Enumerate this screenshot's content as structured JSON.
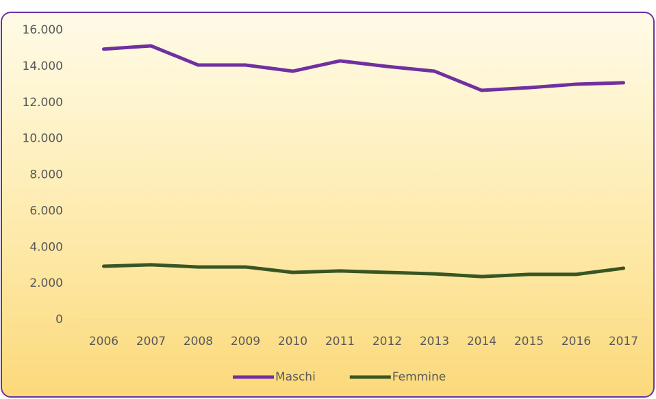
{
  "chart_data": {
    "type": "line",
    "categories": [
      "2006",
      "2007",
      "2008",
      "2009",
      "2010",
      "2011",
      "2012",
      "2013",
      "2014",
      "2015",
      "2016",
      "2017"
    ],
    "series": [
      {
        "name": "Maschi",
        "color": "#7030a0",
        "values": [
          14950,
          15130,
          14070,
          14070,
          13730,
          14300,
          13990,
          13730,
          12670,
          12820,
          13010,
          13090
        ]
      },
      {
        "name": "Femmine",
        "color": "#375623",
        "values": [
          2950,
          3030,
          2910,
          2910,
          2610,
          2690,
          2610,
          2530,
          2380,
          2500,
          2500,
          2840
        ]
      }
    ],
    "ylim": [
      0,
      16000
    ],
    "yticks": [
      0,
      {
        "value": 2000,
        "label": "2.000"
      },
      {
        "value": 4000,
        "label": "4.000"
      },
      {
        "value": 6000,
        "label": "6.000"
      },
      {
        "value": 8000,
        "label": "8.000"
      },
      {
        "value": 10000,
        "label": "10.000"
      },
      {
        "value": 12000,
        "label": "12.000"
      },
      {
        "value": 14000,
        "label": "14.000"
      },
      {
        "value": 16000,
        "label": "16.000"
      }
    ],
    "grid": false,
    "legend": "bottom"
  }
}
